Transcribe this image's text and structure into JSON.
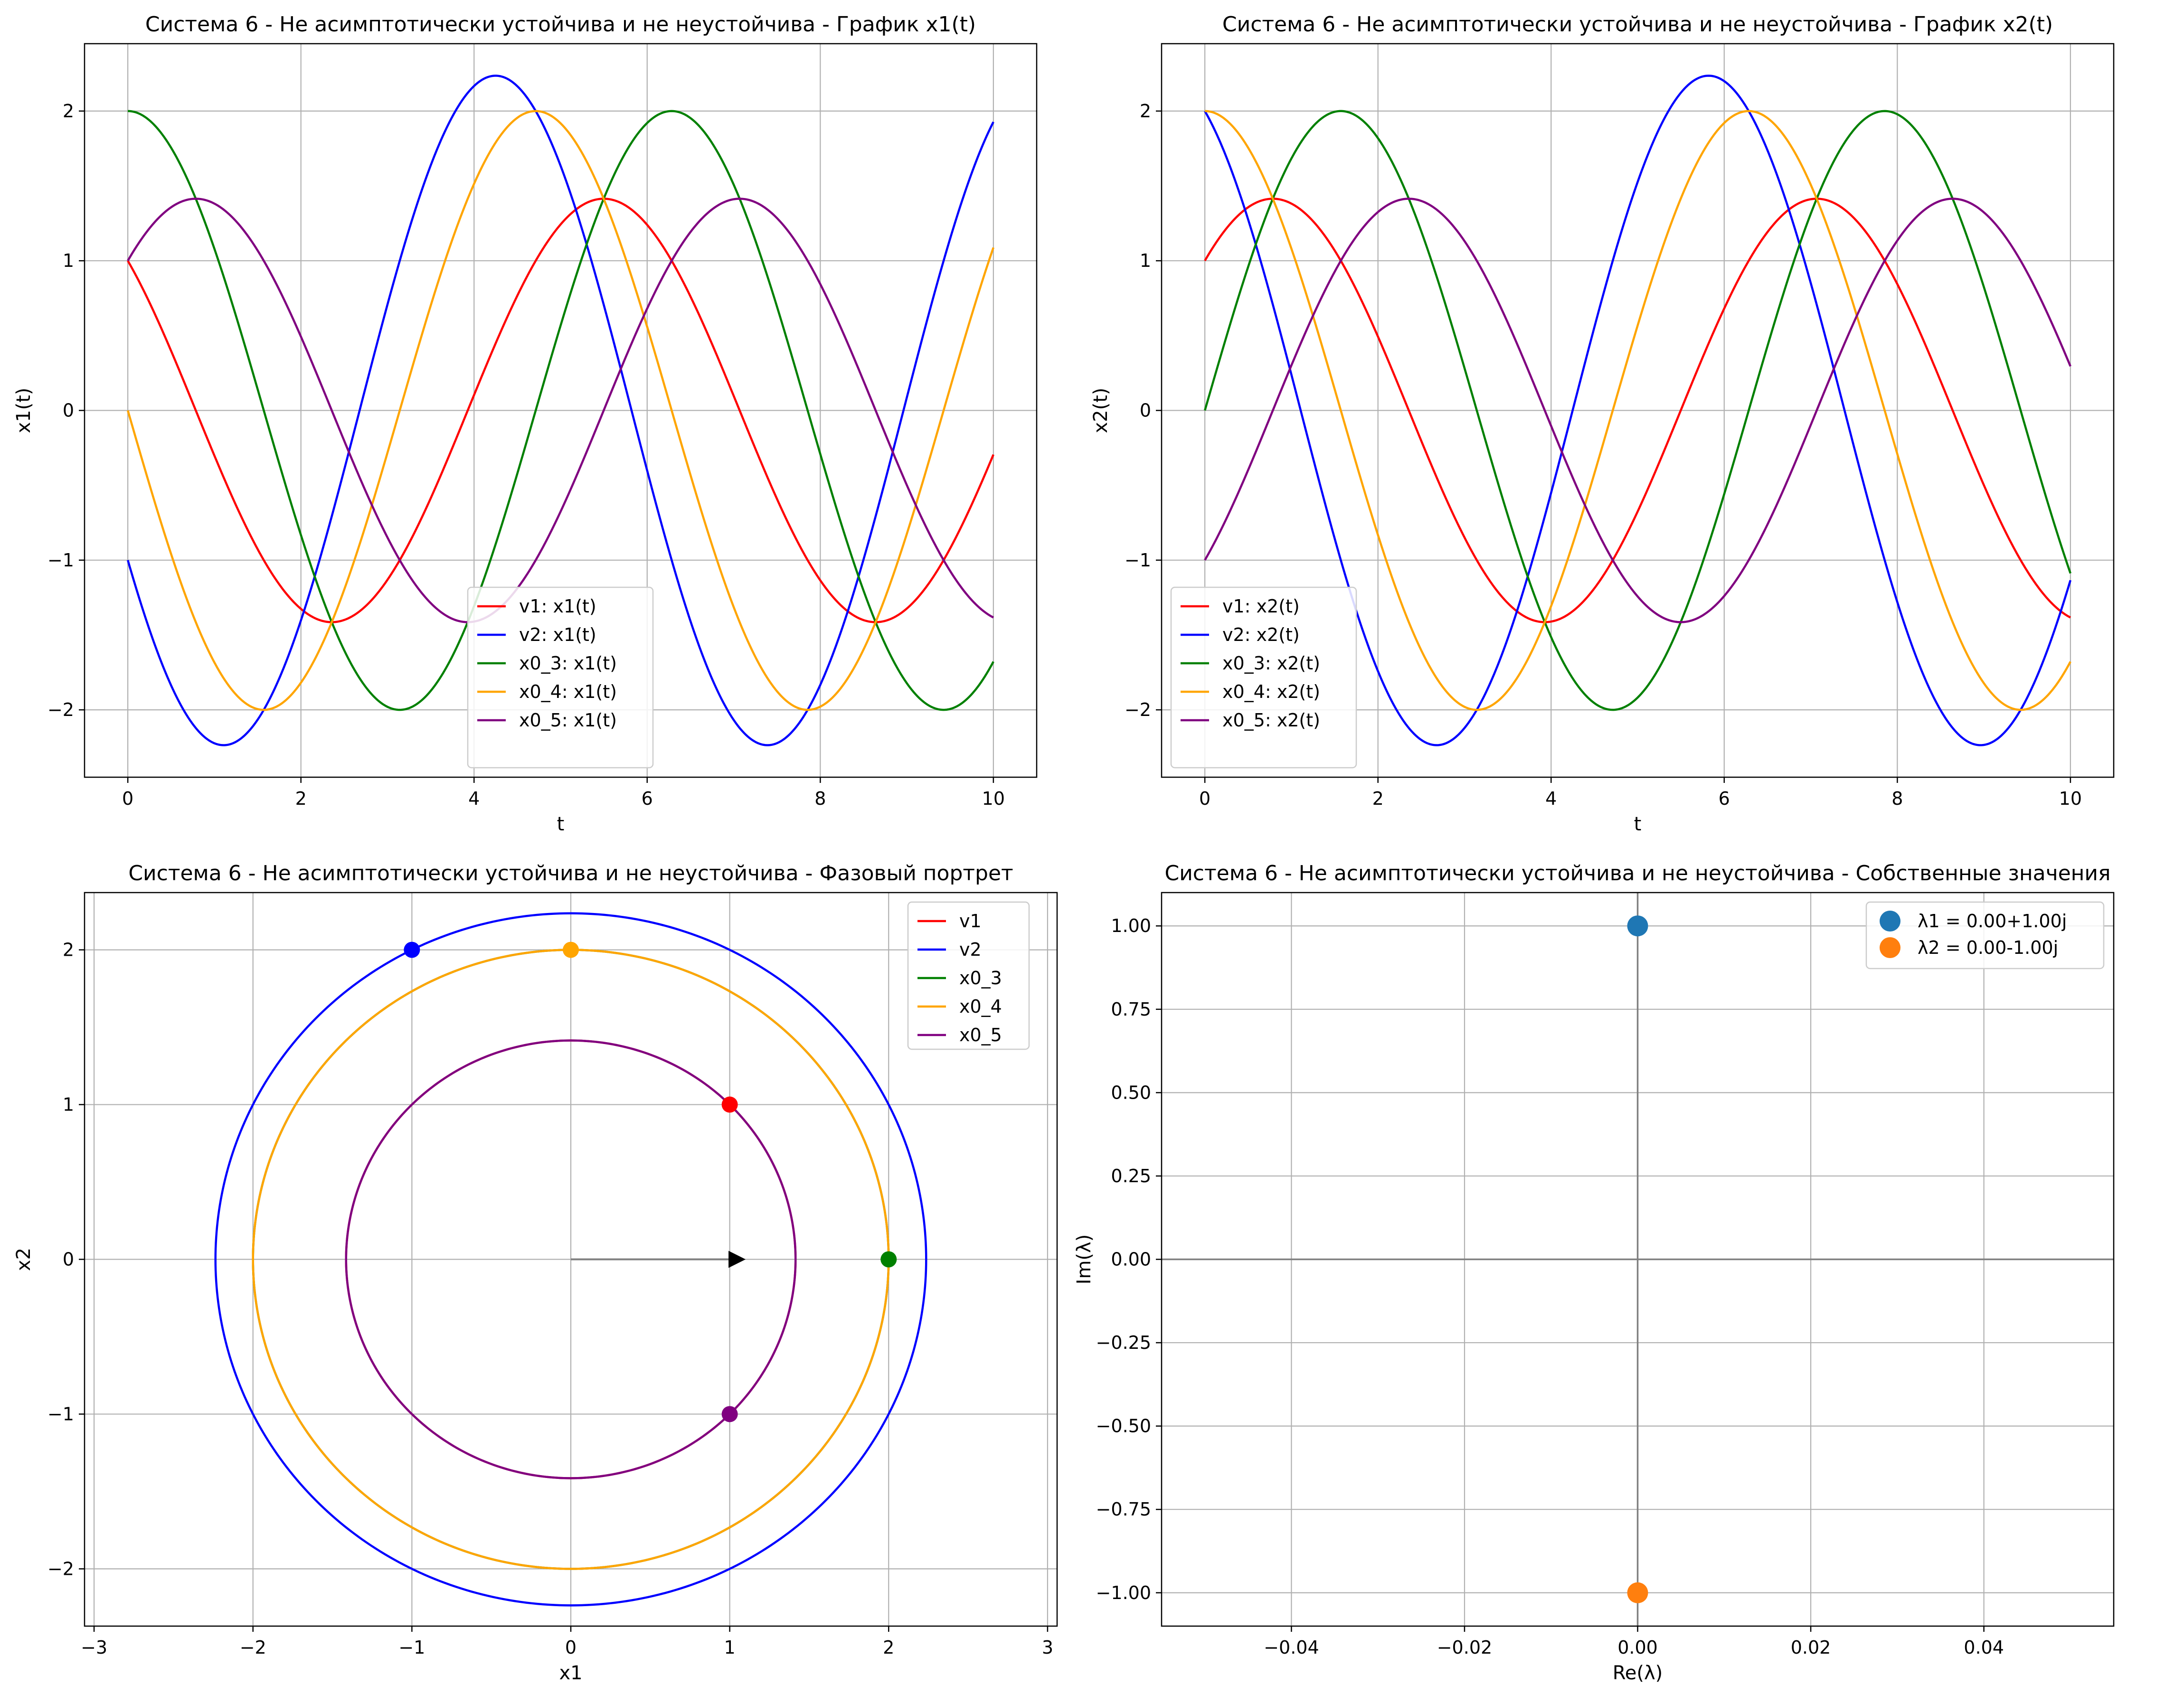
{
  "chart_data": [
    {
      "id": "x1t",
      "type": "line",
      "title": "Система 6 - Не асимптотически устойчива и не неустойчива - График x1(t)",
      "xlabel": "t",
      "ylabel": "x1(t)",
      "xlim": [
        -0.5,
        10.5
      ],
      "ylim": [
        -2.45,
        2.45
      ],
      "xticks": [
        0,
        2,
        4,
        6,
        8,
        10
      ],
      "yticks": [
        -2,
        -1,
        0,
        1,
        2
      ],
      "grid": true,
      "legend_position": "lower-center",
      "series": [
        {
          "name": "v1: x1(t)",
          "color": "#ff0000",
          "x0": 1,
          "y0": 1
        },
        {
          "name": "v2: x1(t)",
          "color": "#0000ff",
          "x0": -1,
          "y0": 2
        },
        {
          "name": "x0_3: x1(t)",
          "color": "#008000",
          "x0": 2,
          "y0": 0
        },
        {
          "name": "x0_4: x1(t)",
          "color": "#ffa500",
          "x0": 0,
          "y0": 2
        },
        {
          "name": "x0_5: x1(t)",
          "color": "#800080",
          "x0": 1,
          "y0": -1
        }
      ]
    },
    {
      "id": "x2t",
      "type": "line",
      "title": "Система 6 - Не асимптотически устойчива и не неустойчива - График x2(t)",
      "xlabel": "t",
      "ylabel": "x2(t)",
      "xlim": [
        -0.5,
        10.5
      ],
      "ylim": [
        -2.45,
        2.45
      ],
      "xticks": [
        0,
        2,
        4,
        6,
        8,
        10
      ],
      "yticks": [
        -2,
        -1,
        0,
        1,
        2
      ],
      "grid": true,
      "legend_position": "lower-left",
      "series": [
        {
          "name": "v1: x2(t)",
          "color": "#ff0000",
          "x0": 1,
          "y0": 1
        },
        {
          "name": "v2: x2(t)",
          "color": "#0000ff",
          "x0": -1,
          "y0": 2
        },
        {
          "name": "x0_3: x2(t)",
          "color": "#008000",
          "x0": 2,
          "y0": 0
        },
        {
          "name": "x0_4: x2(t)",
          "color": "#ffa500",
          "x0": 0,
          "y0": 2
        },
        {
          "name": "x0_5: x2(t)",
          "color": "#800080",
          "x0": 1,
          "y0": -1
        }
      ]
    },
    {
      "id": "phase",
      "type": "line",
      "title": "Система 6 - Не асимптотически устойчива и не неустойчива - Фазовый портрет",
      "xlabel": "x1",
      "ylabel": "x2",
      "xlim": [
        -3.06,
        3.06
      ],
      "ylim": [
        -2.37,
        2.37
      ],
      "xticks": [
        -3,
        -2,
        -1,
        0,
        1,
        2,
        3
      ],
      "yticks": [
        -2,
        -1,
        0,
        1,
        2
      ],
      "grid": true,
      "legend_position": "top-right",
      "series": [
        {
          "name": "v1",
          "color": "#ff0000",
          "x0": 1,
          "y0": 1
        },
        {
          "name": "v2",
          "color": "#0000ff",
          "x0": -1,
          "y0": 2
        },
        {
          "name": "x0_3",
          "color": "#008000",
          "x0": 2,
          "y0": 0
        },
        {
          "name": "x0_4",
          "color": "#ffa500",
          "x0": 0,
          "y0": 2
        },
        {
          "name": "x0_5",
          "color": "#800080",
          "x0": 1,
          "y0": -1
        }
      ],
      "arrow": {
        "from": [
          0,
          0
        ],
        "to": [
          1.1,
          0
        ],
        "color": "#000000"
      }
    },
    {
      "id": "eig",
      "type": "scatter",
      "title": "Система 6 - Не асимптотически устойчива и не неустойчива - Собственные значения",
      "xlabel": "Re(λ)",
      "ylabel": "Im(λ)",
      "xlim": [
        -0.055,
        0.055
      ],
      "ylim": [
        -1.1,
        1.1
      ],
      "xticks": [
        -0.04,
        -0.02,
        0.0,
        0.02,
        0.04
      ],
      "yticks": [
        -1.0,
        -0.75,
        -0.5,
        -0.25,
        0.0,
        0.25,
        0.5,
        0.75,
        1.0
      ],
      "grid": true,
      "legend_position": "top-right",
      "series": [
        {
          "name": "λ1 = 0.00+1.00j",
          "color": "#1f77b4",
          "x": [
            0.0
          ],
          "y": [
            1.0
          ]
        },
        {
          "name": "λ2 = 0.00-1.00j",
          "color": "#ff7f0e",
          "x": [
            0.0
          ],
          "y": [
            -1.0
          ]
        }
      ]
    }
  ]
}
